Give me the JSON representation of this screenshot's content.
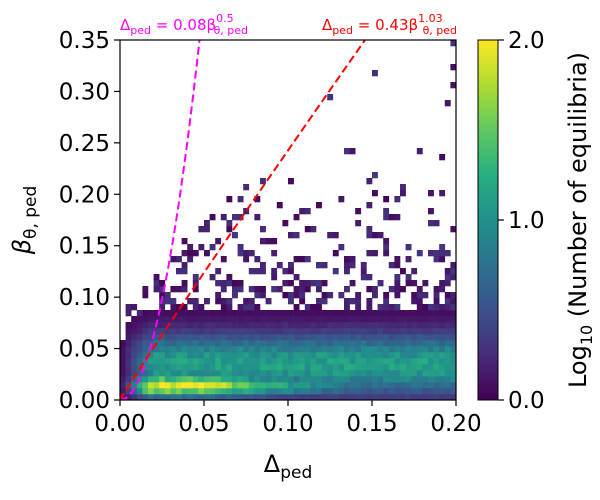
{
  "chart_data": {
    "type": "heatmap",
    "title": "",
    "xlabel": {
      "base": "Δ",
      "sub": "ped"
    },
    "ylabel": {
      "base": "β",
      "sub": "θ, ped"
    },
    "xlim": [
      0.0,
      0.2
    ],
    "ylim": [
      0.0,
      0.35
    ],
    "xticks": [
      "0.00",
      "0.05",
      "0.10",
      "0.15",
      "0.20"
    ],
    "yticks": [
      "0.00",
      "0.05",
      "0.10",
      "0.15",
      "0.20",
      "0.25",
      "0.30",
      "0.35"
    ],
    "grid": false,
    "colormap": "viridis",
    "colorbar": {
      "label_pre": "Log",
      "label_sub": "10",
      "label_post": " (Number of equilibria)",
      "range": [
        0.0,
        2.0
      ],
      "ticks": [
        "0.0",
        "1.0",
        "2.0"
      ]
    },
    "fits": [
      {
        "label_pre": "Δ",
        "label_pre_sub": "ped",
        "label_mid": " = 0.08β",
        "label_sub": "θ, ped",
        "label_sup": "0.5",
        "coef": 0.08,
        "exponent": 0.5,
        "color": "#ff00ff",
        "dash": "dashed"
      },
      {
        "label_pre": "Δ",
        "label_pre_sub": "ped",
        "label_mid": " = 0.43β",
        "label_sub": "θ, ped",
        "label_sup": "1.03",
        "coef": 0.43,
        "exponent": 1.03,
        "color": "#ff0000",
        "dash": "dashed"
      }
    ],
    "bins": {
      "nx": 60,
      "ny": 60
    },
    "density_description": "dense band at beta 0.005-0.03 peaking near delta 0.03-0.06; moderate density up to beta ~0.08; sparse scatter up to beta ~0.35"
  }
}
